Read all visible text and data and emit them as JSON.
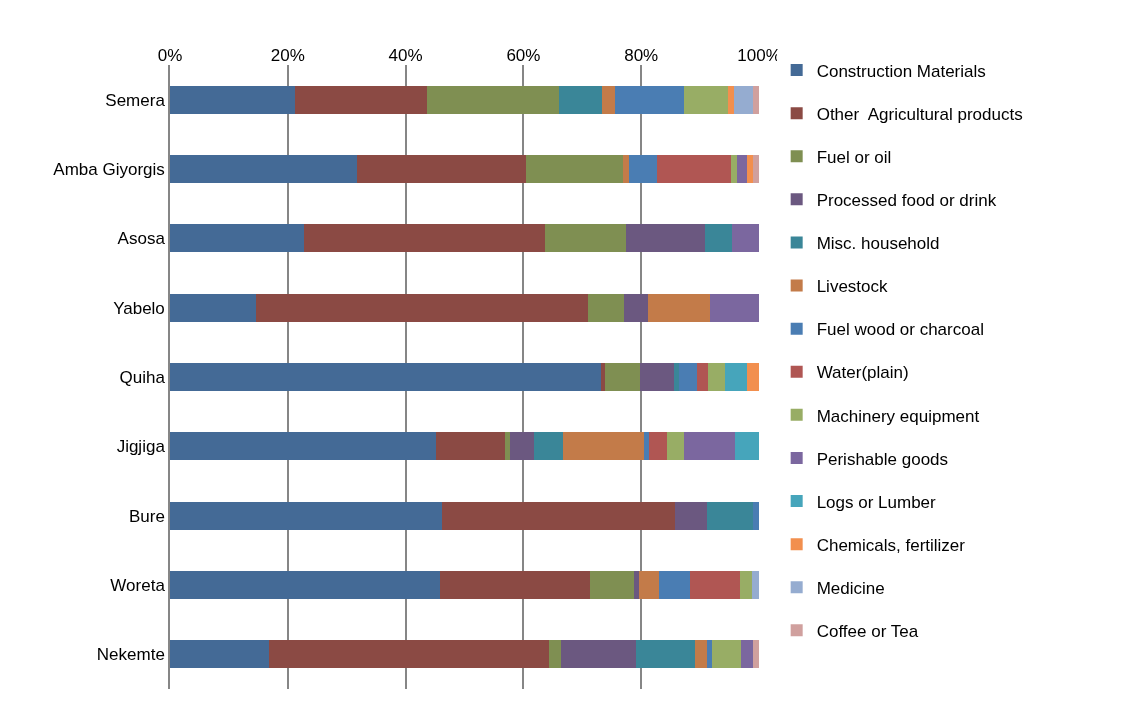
{
  "chart_data": {
    "type": "bar",
    "orientation": "horizontal",
    "stacked": true,
    "grid": "x",
    "legend": "right",
    "categories": [
      "Semera",
      "Amba Giyorgis",
      "Asosa",
      "Yabelo",
      "Quiha",
      "Jigjiga",
      "Bure",
      "Woreta",
      "Nekemte"
    ],
    "xlim": [
      0,
      100
    ],
    "xticks": [
      {
        "value": 0,
        "label": "0%"
      },
      {
        "value": 20,
        "label": "20%"
      },
      {
        "value": 40,
        "label": "40%"
      },
      {
        "value": 60,
        "label": "60%"
      },
      {
        "value": 80,
        "label": "80%"
      },
      {
        "value": 100,
        "label": "100%"
      }
    ],
    "series": [
      {
        "name": "Construction Materials",
        "color": "#446a96",
        "values": [
          21.3,
          31.7,
          22.8,
          14.6,
          73.1,
          45.1,
          46.2,
          45.8,
          16.8
        ]
      },
      {
        "name": "Other  Agricultural products",
        "color": "#8b4a44",
        "values": [
          22.3,
          28.8,
          40.9,
          56.3,
          0.8,
          11.7,
          39.5,
          25.5,
          47.6
        ]
      },
      {
        "name": "Fuel or oil",
        "color": "#7f8f52",
        "values": [
          22.4,
          16.4,
          13.7,
          6.2,
          5.9,
          1.0,
          0,
          7.4,
          1.9
        ]
      },
      {
        "name": "Processed food or drink",
        "color": "#6b5880",
        "values": [
          0,
          0,
          13.5,
          4.1,
          5.8,
          4.0,
          5.5,
          1.0,
          12.9
        ]
      },
      {
        "name": "Misc. household",
        "color": "#3a8698",
        "values": [
          7.4,
          0,
          4.5,
          0,
          0.9,
          4.9,
          7.7,
          0,
          9.9
        ]
      },
      {
        "name": "Livestock",
        "color": "#c37b49",
        "values": [
          2.2,
          1.0,
          0,
          10.5,
          0,
          13.7,
          0,
          3.3,
          2.0
        ]
      },
      {
        "name": "Fuel wood or charcoal",
        "color": "#4a7db3",
        "values": [
          11.7,
          4.8,
          0,
          0,
          3.0,
          0.9,
          1.1,
          5.3,
          0.9
        ]
      },
      {
        "name": "Water(plain)",
        "color": "#b05653",
        "values": [
          0,
          12.5,
          0,
          0,
          1.9,
          3.0,
          0,
          8.4,
          0
        ]
      },
      {
        "name": "Machinery equipment",
        "color": "#98ad65",
        "values": [
          7.4,
          1.0,
          0,
          0,
          2.8,
          3.0,
          0,
          2.1,
          5.0
        ]
      },
      {
        "name": "Perishable goods",
        "color": "#7b679f",
        "values": [
          0,
          1.8,
          4.6,
          8.3,
          0,
          8.7,
          0,
          0,
          2.0
        ]
      },
      {
        "name": "Logs or Lumber",
        "color": "#46a5bb",
        "values": [
          0,
          0,
          0,
          0,
          3.8,
          4.0,
          0,
          0,
          0
        ]
      },
      {
        "name": "Chemicals, fertilizer",
        "color": "#f28f4e",
        "values": [
          1.0,
          1.0,
          0,
          0,
          2.0,
          0,
          0,
          0,
          0
        ]
      },
      {
        "name": "Medicine",
        "color": "#95acd0",
        "values": [
          3.2,
          0,
          0,
          0,
          0,
          0,
          0,
          1.2,
          0
        ]
      },
      {
        "name": "Coffee or Tea",
        "color": "#d0a09e",
        "values": [
          1.1,
          1.0,
          0,
          0,
          0,
          0,
          0,
          0,
          1.0
        ]
      }
    ]
  }
}
